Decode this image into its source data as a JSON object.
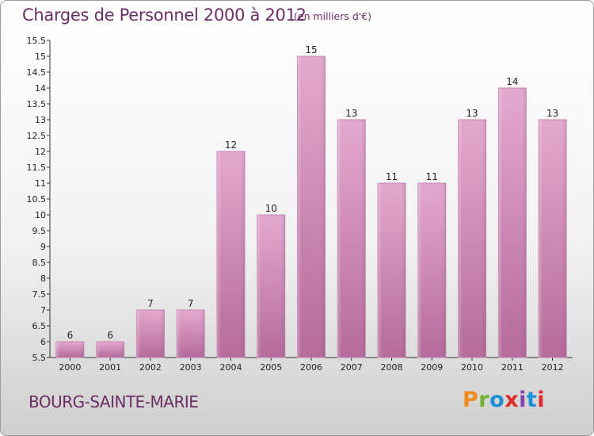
{
  "header": {
    "title": "Charges de Personnel 2000 à 2012",
    "unit": "(en milliers d'€)"
  },
  "footer": {
    "town": "BOURG-SAINTE-MARIE",
    "brand": "Proxiti",
    "brand_colors": [
      "#f08a1c",
      "#6fb32e",
      "#1c8fd6",
      "#e02a2a",
      "#8a3fb0",
      "#1c8fd6",
      "#e02a2a"
    ]
  },
  "chart_data": {
    "type": "bar",
    "categories": [
      "2000",
      "2001",
      "2002",
      "2003",
      "2004",
      "2005",
      "2006",
      "2007",
      "2008",
      "2009",
      "2010",
      "2011",
      "2012"
    ],
    "values": [
      6,
      6,
      7,
      7,
      12,
      10,
      15,
      13,
      11,
      11,
      13,
      14,
      13
    ],
    "data_labels": [
      "6",
      "6",
      "7",
      "7",
      "12",
      "10",
      "15",
      "13",
      "11",
      "11",
      "13",
      "14",
      "13"
    ],
    "title": "Charges de Personnel 2000 à 2012",
    "xlabel": "",
    "ylabel": "",
    "ylim": [
      5.5,
      15.5
    ],
    "yticks": [
      5.5,
      6,
      6.5,
      7,
      7.5,
      8,
      8.5,
      9,
      9.5,
      10,
      10.5,
      11,
      11.5,
      12,
      12.5,
      13,
      13.5,
      14,
      14.5,
      15,
      15.5
    ],
    "ytick_labels": [
      "5.5",
      "6",
      "6.5",
      "7",
      "7.5",
      "8",
      "8.5",
      "9",
      "9.5",
      "10",
      "10.5",
      "11",
      "11.5",
      "12",
      "12.5",
      "13",
      "13.5",
      "14",
      "14.5",
      "15",
      "15.5"
    ],
    "grid": false,
    "legend": "none",
    "bar_color": "#dc9fc8",
    "bar_color_dark": "#b66a9c"
  }
}
